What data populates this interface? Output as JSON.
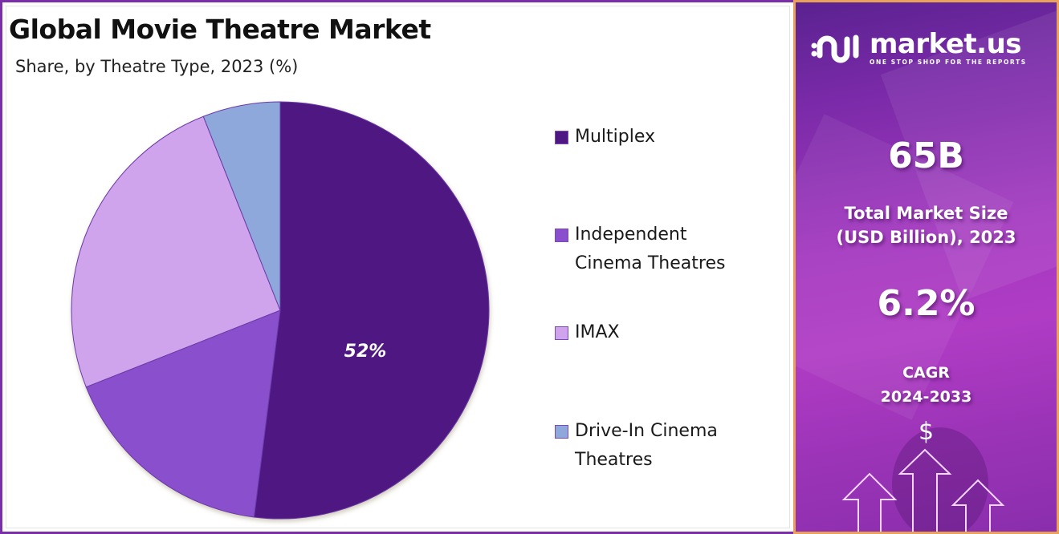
{
  "header": {
    "title": "Global Movie Theatre Market",
    "subtitle": "Share, by Theatre Type, 2023 (%)"
  },
  "pie_label": "52%",
  "legend": [
    {
      "label_line1": "Multiplex",
      "label_line2": "",
      "color": "#4f1782"
    },
    {
      "label_line1": "Independent",
      "label_line2": "Cinema Theatres",
      "color": "#8a4fcc"
    },
    {
      "label_line1": "IMAX",
      "label_line2": "",
      "color": "#d0a4ec"
    },
    {
      "label_line1": "Drive-In Cinema",
      "label_line2": "Theatres",
      "color": "#8fa8dc"
    }
  ],
  "sidebar": {
    "brand": "market.us",
    "tagline": "ONE STOP SHOP FOR THE REPORTS",
    "market_size_value": "65B",
    "market_size_label_line1": "Total Market Size",
    "market_size_label_line2": "(USD Billion), 2023",
    "cagr_value": "6.2%",
    "cagr_label_line1": "CAGR",
    "cagr_label_line2": "2024-2033",
    "dollar_symbol": "$"
  },
  "chart_data": {
    "type": "pie",
    "title": "Global Movie Theatre Market",
    "subtitle": "Share, by Theatre Type, 2023 (%)",
    "categories": [
      "Multiplex",
      "Independent Cinema Theatres",
      "IMAX",
      "Drive-In Cinema Theatres"
    ],
    "values": [
      52,
      17,
      25,
      6
    ],
    "colors": [
      "#4f1782",
      "#8a4fcc",
      "#d0a4ec",
      "#8fa8dc"
    ],
    "data_labels": [
      "52%",
      "",
      "",
      ""
    ],
    "start_angle_deg": 0,
    "direction": "clockwise",
    "legend_position": "right"
  }
}
